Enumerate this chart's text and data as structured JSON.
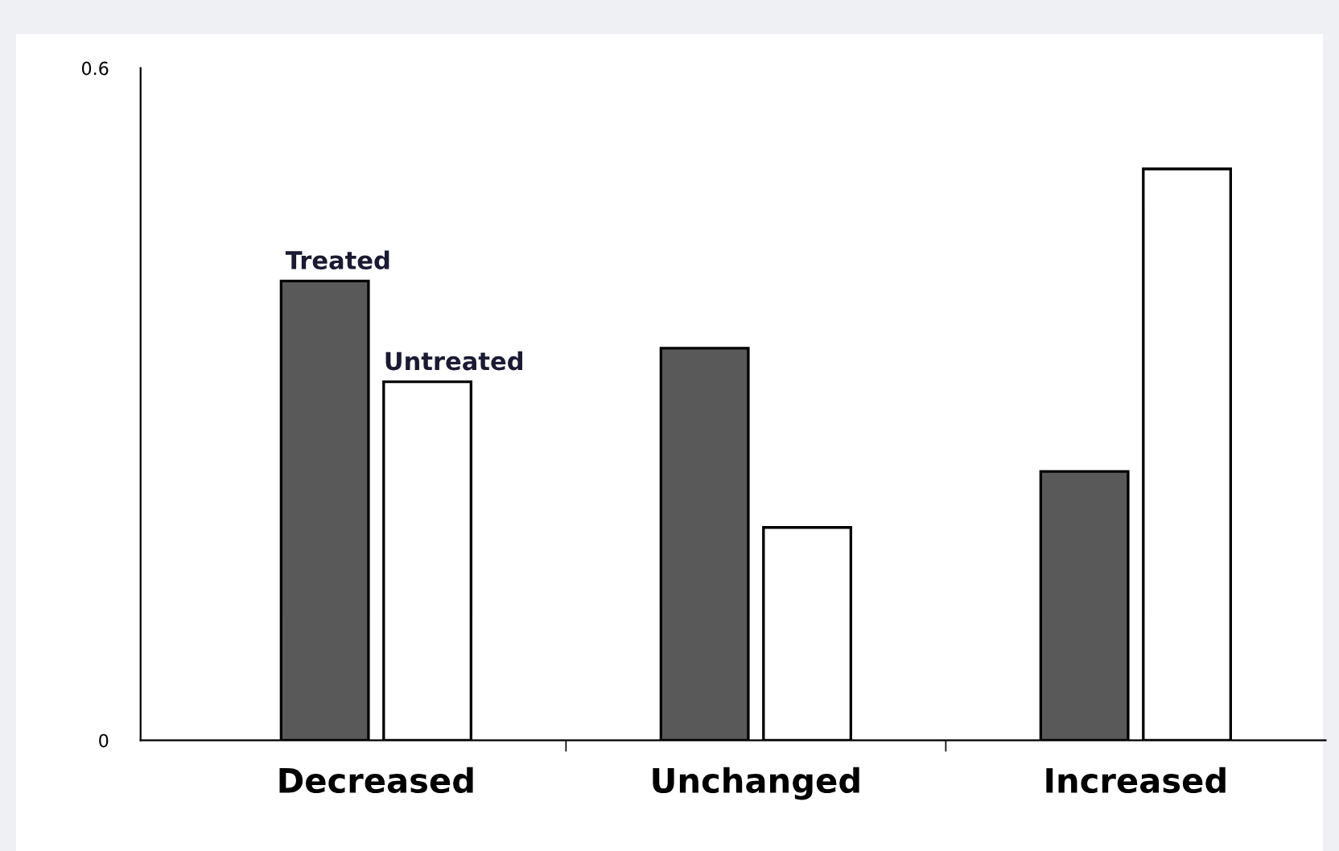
{
  "chart_data": {
    "type": "bar",
    "categories": [
      "Decreased",
      "Unchanged",
      "Increased"
    ],
    "series": [
      {
        "name": "Treated",
        "color": "#595959",
        "values": [
          0.41,
          0.35,
          0.24
        ]
      },
      {
        "name": "Untreated",
        "color": "#ffffff",
        "values": [
          0.32,
          0.19,
          0.51
        ]
      }
    ],
    "ylim": [
      0,
      0.6
    ],
    "yticks": [
      0,
      0.6
    ],
    "grid": false,
    "legend": false
  }
}
